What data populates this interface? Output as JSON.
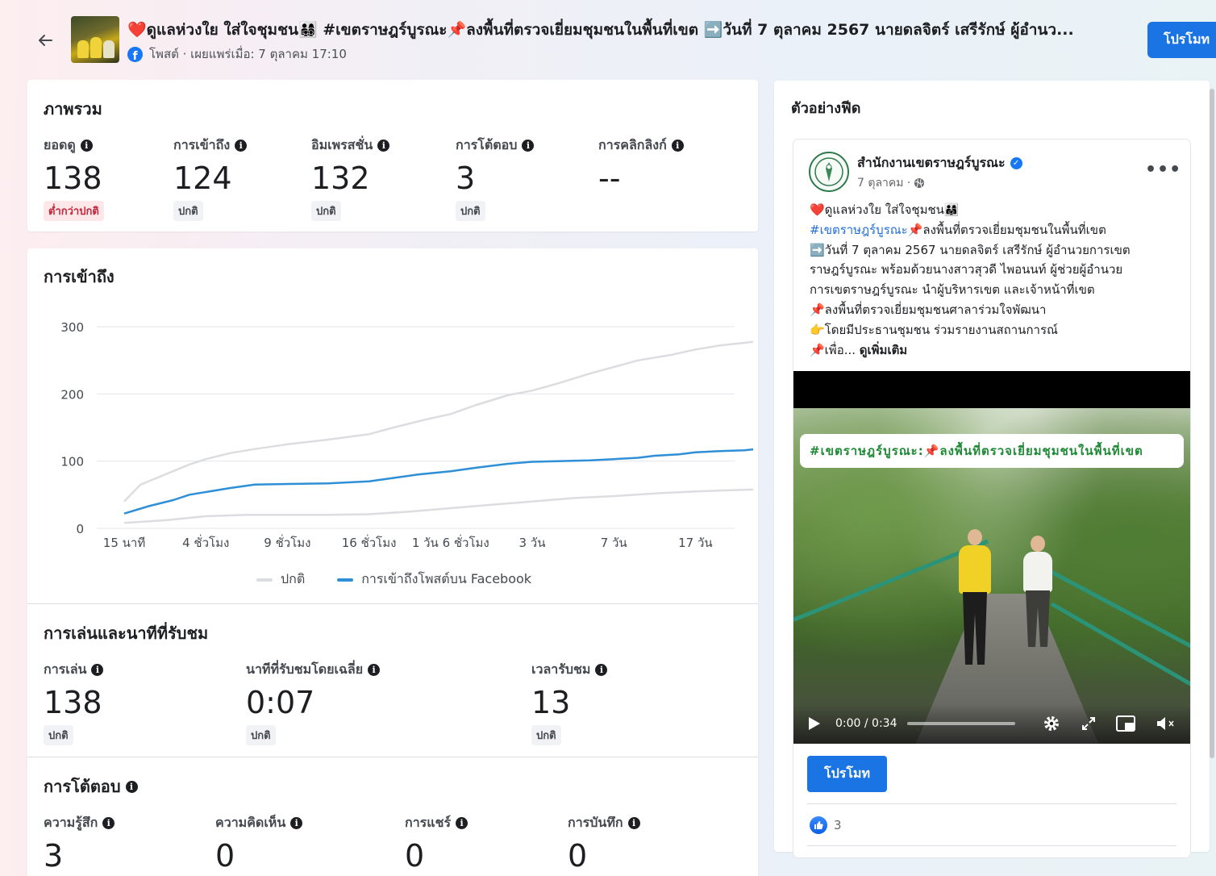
{
  "header": {
    "post_title": "❤️ดูแลห่วงใย ใส่ใจชุมชน👨‍👩‍👧‍👦 #เขตราษฎร์บูรณะ📌ลงพื้นที่ตรวจเยี่ยมชุมชนในพื้นที่เขต ➡️วันที่ 7 ตุลาคม 2567 นายดลจิตร์ เสรีรักษ์ ผู้อำนว...",
    "post_meta": "โพสต์ · เผยแพร่เมื่อ: 7 ตุลาคม 17:10",
    "promote_label": "โปรโมท"
  },
  "overview": {
    "title": "ภาพรวม",
    "metrics": [
      {
        "label": "ยอดดู",
        "value": "138",
        "status": "ต่ำกว่าปกติ"
      },
      {
        "label": "การเข้าถึง",
        "value": "124",
        "status": "ปกติ"
      },
      {
        "label": "อิมเพรสชั่น",
        "value": "132",
        "status": "ปกติ"
      },
      {
        "label": "การโต้ตอบ",
        "value": "3",
        "status": "ปกติ"
      },
      {
        "label": "การคลิกลิงก์",
        "value": "--",
        "status": ""
      }
    ]
  },
  "reach": {
    "title": "การเข้าถึง"
  },
  "chart_data": {
    "type": "line",
    "title": "การเข้าถึง",
    "x": [
      "15 นาที",
      "4 ชั่วโมง",
      "9 ชั่วโมง",
      "16 ชั่วโมง",
      "1 วัน 6 ชั่วโมง",
      "3 วัน",
      "7 วัน",
      "17 วัน"
    ],
    "y_ticks": [
      0,
      100,
      200,
      300
    ],
    "ylim": [
      0,
      300
    ],
    "grid": true,
    "legend_position": "bottom",
    "series": [
      {
        "name": "ปกติ",
        "color": "#dcdde0",
        "points": [
          [
            0,
            40
          ],
          [
            0.2,
            65
          ],
          [
            0.5,
            80
          ],
          [
            0.8,
            95
          ],
          [
            1,
            103
          ],
          [
            1.3,
            112
          ],
          [
            1.6,
            118
          ],
          [
            2,
            125
          ],
          [
            2.5,
            132
          ],
          [
            3,
            140
          ],
          [
            3.3,
            150
          ],
          [
            3.7,
            162
          ],
          [
            4,
            170
          ],
          [
            4.3,
            183
          ],
          [
            4.7,
            198
          ],
          [
            5,
            205
          ],
          [
            5.3,
            215
          ],
          [
            5.7,
            230
          ],
          [
            6,
            240
          ],
          [
            6.3,
            250
          ],
          [
            6.7,
            258
          ],
          [
            7,
            266
          ],
          [
            7.3,
            272
          ],
          [
            7.6,
            276
          ],
          [
            7.75,
            278
          ]
        ]
      },
      {
        "name": "การเข้าถึงโพสต์บน Facebook",
        "color": "#2f8fd6",
        "points": [
          [
            0,
            22
          ],
          [
            0.3,
            33
          ],
          [
            0.6,
            42
          ],
          [
            0.8,
            50
          ],
          [
            1,
            54
          ],
          [
            1.3,
            60
          ],
          [
            1.6,
            65
          ],
          [
            2,
            66
          ],
          [
            2.5,
            67
          ],
          [
            3,
            70
          ],
          [
            3.3,
            75
          ],
          [
            3.6,
            80
          ],
          [
            4,
            85
          ],
          [
            4.3,
            90
          ],
          [
            4.7,
            96
          ],
          [
            5,
            99
          ],
          [
            5.3,
            100
          ],
          [
            5.7,
            101
          ],
          [
            6,
            103
          ],
          [
            6.3,
            105
          ],
          [
            6.5,
            108
          ],
          [
            6.8,
            110
          ],
          [
            7,
            113
          ],
          [
            7.3,
            115
          ],
          [
            7.6,
            116
          ],
          [
            7.9,
            120
          ],
          [
            8.05,
            123
          ]
        ]
      },
      {
        "name": "",
        "color": "#dcdde0",
        "points": [
          [
            0,
            8
          ],
          [
            0.5,
            12
          ],
          [
            1,
            18
          ],
          [
            1.5,
            20
          ],
          [
            2,
            20
          ],
          [
            2.5,
            20
          ],
          [
            3,
            21
          ],
          [
            3.5,
            25
          ],
          [
            4,
            30
          ],
          [
            4.5,
            35
          ],
          [
            5,
            40
          ],
          [
            5.5,
            45
          ],
          [
            6,
            48
          ],
          [
            6.5,
            52
          ],
          [
            7,
            55
          ],
          [
            7.5,
            57
          ],
          [
            7.75,
            58
          ]
        ]
      }
    ]
  },
  "playback": {
    "title": "การเล่นและนาทีที่รับชม",
    "metrics": [
      {
        "label": "การเล่น",
        "value": "138",
        "status": "ปกติ"
      },
      {
        "label": "นาทีที่รับชมโดยเฉลี่ย",
        "value": "0:07",
        "status": "ปกติ"
      },
      {
        "label": "เวลารับชม",
        "value": "13",
        "status": "ปกติ"
      }
    ]
  },
  "interactions": {
    "title": "การโต้ตอบ",
    "metrics": [
      {
        "label": "ความรู้สึก",
        "value": "3"
      },
      {
        "label": "ความคิดเห็น",
        "value": "0"
      },
      {
        "label": "การแชร์",
        "value": "0"
      },
      {
        "label": "การบันทึก",
        "value": "0"
      }
    ]
  },
  "feed": {
    "title": "ตัวอย่างฟีด",
    "page_name": "สำนักงานเขตราษฎร์บูรณะ",
    "date": "7 ตุลาคม ·",
    "more": "•••",
    "lines": [
      "❤️ดูแลห่วงใย ใส่ใจชุมชน👨‍👩‍👧",
      "#เขตราษฎร์บูรณะ",
      "📌ลงพื้นที่ตรวจเยี่ยมชุมชนในพื้นที่เขต",
      "➡️วันที่ 7 ตุลาคม 2567 นายดลจิตร์ เสรีรักษ์ ผู้อำนวยการเขต",
      "ราษฎร์บูรณะ พร้อมด้วยนางสาวสุวดี ไพอนนท์ ผู้ช่วยผู้อำนวย",
      "การเขตราษฎร์บูรณะ นำผู้บริหารเขต และเจ้าหน้าที่เขต",
      "📌ลงพื้นที่ตรวจเยี่ยมชุมชนศาลาร่วมใจพัฒนา",
      "👉โดยมีประธานชุมชน ร่วมรายงานสถานการณ์",
      "📌เพื่อ...",
      "ดูเพิ่มเติม"
    ],
    "video_banner": "#เขตราษฎร์บูรณะ:📌ลงพื้นที่ตรวจเยี่ยมชุมชนในพื้นที่เขต",
    "video_time": "0:00 / 0:34",
    "promote_label": "โปรโมท",
    "like_count": "3"
  }
}
